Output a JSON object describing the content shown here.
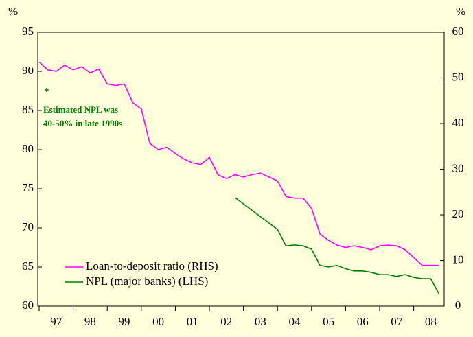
{
  "chart_data": {
    "type": "line",
    "y_unit_label": "%",
    "y2_unit_label": "%",
    "ylim": [
      60,
      95
    ],
    "yticks": [
      60,
      65,
      70,
      75,
      80,
      85,
      90,
      95
    ],
    "y2lim": [
      0,
      60
    ],
    "y2ticks": [
      0,
      10,
      20,
      30,
      40,
      50,
      60
    ],
    "xlim": [
      1997,
      2008.9
    ],
    "xticks": [
      {
        "value": 1997.5,
        "label": "97"
      },
      {
        "value": 1998.5,
        "label": "98"
      },
      {
        "value": 1999.5,
        "label": "99"
      },
      {
        "value": 2000.5,
        "label": "00"
      },
      {
        "value": 2001.5,
        "label": "01"
      },
      {
        "value": 2002.5,
        "label": "02"
      },
      {
        "value": 2003.5,
        "label": "03"
      },
      {
        "value": 2004.5,
        "label": "04"
      },
      {
        "value": 2005.5,
        "label": "05"
      },
      {
        "value": 2006.5,
        "label": "06"
      },
      {
        "value": 2007.5,
        "label": "07"
      },
      {
        "value": 2008.5,
        "label": "08"
      }
    ],
    "series": [
      {
        "name": "Loan-to-deposit ratio (RHS)",
        "color": "#ff00ff",
        "x": [
          1997,
          1997.25,
          1997.5,
          1997.75,
          1998,
          1998.25,
          1998.5,
          1998.75,
          1999,
          1999.25,
          1999.5,
          1999.75,
          2000,
          2000.25,
          2000.5,
          2000.75,
          2001,
          2001.25,
          2001.5,
          2001.75,
          2002,
          2002.25,
          2002.5,
          2002.75,
          2003,
          2003.25,
          2003.5,
          2003.75,
          2004,
          2004.25,
          2004.5,
          2004.75,
          2005,
          2005.25,
          2005.5,
          2005.75,
          2006,
          2006.25,
          2006.5,
          2006.75,
          2007,
          2007.25,
          2007.5,
          2007.75,
          2008,
          2008.25,
          2008.5,
          2008.75
        ],
        "values": [
          91.2,
          90.2,
          90.0,
          90.8,
          90.2,
          90.6,
          89.8,
          90.3,
          88.4,
          88.2,
          88.4,
          86.0,
          85.2,
          80.8,
          80.0,
          80.3,
          79.5,
          78.8,
          78.3,
          78.1,
          79.0,
          76.8,
          76.3,
          76.8,
          76.5,
          76.8,
          77.0,
          76.5,
          76.0,
          74.0,
          73.8,
          73.8,
          72.5,
          69.2,
          68.4,
          67.8,
          67.5,
          67.7,
          67.5,
          67.2,
          67.7,
          67.8,
          67.7,
          67.2,
          66.2,
          65.2,
          65.2,
          65.2
        ]
      },
      {
        "name": "NPL (major banks) (LHS)",
        "color": "#008000",
        "axis": "y2",
        "x": [
          2002.75,
          2004,
          2004.25,
          2004.5,
          2004.75,
          2005,
          2005.25,
          2005.5,
          2005.75,
          2006,
          2006.25,
          2006.5,
          2006.75,
          2007,
          2007.25,
          2007.5,
          2007.75,
          2008,
          2008.25,
          2008.5,
          2008.75
        ],
        "values": [
          23.8,
          16.8,
          13.2,
          13.4,
          13.2,
          12.5,
          8.9,
          8.6,
          8.9,
          8.2,
          7.7,
          7.7,
          7.4,
          6.9,
          6.9,
          6.5,
          6.9,
          6.3,
          6.0,
          6.0,
          2.6
        ]
      }
    ],
    "annotation": {
      "marker": "*",
      "lines": [
        "Estimated NPL was",
        "40-50% in late 1990s"
      ],
      "color": "#008000"
    }
  }
}
